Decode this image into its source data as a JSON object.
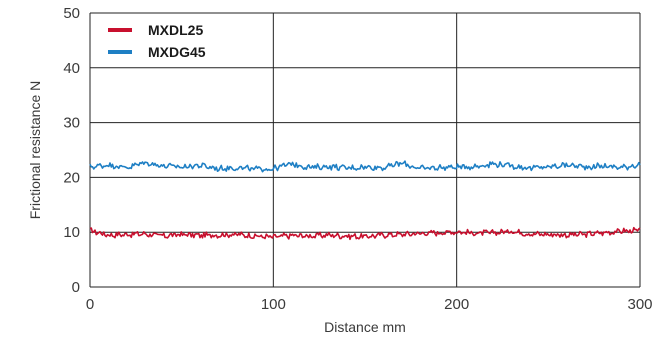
{
  "chart_data": {
    "type": "line",
    "title": "",
    "xlabel": "Distance mm",
    "ylabel": "Frictional resistance  N",
    "xlim": [
      0,
      300
    ],
    "ylim": [
      0,
      50
    ],
    "x_ticks": [
      0,
      100,
      200,
      300
    ],
    "y_ticks": [
      0,
      10,
      20,
      30,
      40,
      50
    ],
    "grid": true,
    "legend_position": "top-left",
    "series": [
      {
        "name": "MXDL25",
        "color": "#c8102e",
        "x": [
          0,
          10,
          20,
          30,
          40,
          50,
          60,
          70,
          80,
          90,
          100,
          110,
          120,
          130,
          140,
          150,
          160,
          170,
          180,
          190,
          200,
          210,
          220,
          230,
          240,
          250,
          260,
          270,
          280,
          290,
          300
        ],
        "values": [
          10.3,
          9.5,
          9.6,
          9.7,
          9.3,
          9.6,
          9.4,
          9.5,
          9.6,
          9.3,
          9.1,
          9.4,
          9.3,
          9.5,
          9.3,
          9.2,
          9.5,
          9.6,
          9.8,
          9.9,
          10.1,
          9.8,
          9.9,
          10.2,
          9.7,
          9.6,
          9.5,
          9.6,
          9.9,
          10.2,
          10.3
        ]
      },
      {
        "name": "MXDG45",
        "color": "#1e7fc4",
        "x": [
          0,
          10,
          20,
          30,
          40,
          50,
          60,
          70,
          80,
          90,
          100,
          110,
          120,
          130,
          140,
          150,
          160,
          170,
          180,
          190,
          200,
          210,
          220,
          230,
          240,
          250,
          260,
          270,
          280,
          290,
          300
        ],
        "values": [
          21.9,
          22.3,
          21.8,
          22.7,
          22.1,
          21.9,
          22.2,
          21.6,
          21.8,
          21.5,
          21.6,
          22.5,
          21.8,
          22.0,
          21.7,
          21.9,
          21.8,
          22.6,
          21.6,
          21.8,
          21.9,
          22.0,
          22.5,
          22.1,
          21.7,
          21.9,
          22.3,
          21.9,
          22.1,
          21.8,
          22.4
        ]
      }
    ]
  }
}
